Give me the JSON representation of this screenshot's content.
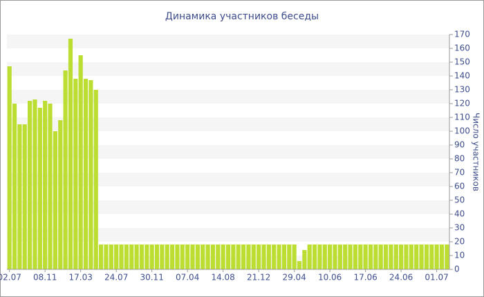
{
  "chart_data": {
    "type": "bar",
    "title": "Динамика участников беседы",
    "y_axis_label": "Число участников",
    "categories": [
      "02.07",
      null,
      null,
      null,
      null,
      null,
      null,
      "08.11",
      null,
      null,
      null,
      null,
      null,
      null,
      "17.03",
      null,
      null,
      null,
      null,
      null,
      null,
      "24.07",
      null,
      null,
      null,
      null,
      null,
      null,
      "30.11",
      null,
      null,
      null,
      null,
      null,
      null,
      "07.04",
      null,
      null,
      null,
      null,
      null,
      null,
      "14.08",
      null,
      null,
      null,
      null,
      null,
      null,
      "21.12",
      null,
      null,
      null,
      null,
      null,
      null,
      "29.04",
      null,
      null,
      null,
      null,
      null,
      null,
      "10.06",
      null,
      null,
      null,
      null,
      null,
      null,
      "17.06",
      null,
      null,
      null,
      null,
      null,
      null,
      "24.06",
      null,
      null,
      null,
      null,
      null,
      null,
      "01.07",
      null,
      null
    ],
    "values": [
      147,
      120,
      105,
      105,
      122,
      123,
      117,
      122,
      120,
      100,
      108,
      144,
      167,
      138,
      155,
      138,
      137,
      130,
      18,
      18,
      18,
      18,
      18,
      18,
      18,
      18,
      18,
      18,
      18,
      18,
      18,
      18,
      18,
      18,
      18,
      18,
      18,
      18,
      18,
      18,
      18,
      18,
      18,
      18,
      18,
      18,
      18,
      18,
      18,
      18,
      18,
      18,
      18,
      18,
      18,
      18,
      18,
      6,
      14,
      18,
      18,
      18,
      18,
      18,
      18,
      18,
      18,
      18,
      18,
      18,
      18,
      18,
      18,
      18,
      18,
      18,
      18,
      18,
      18,
      18,
      18,
      18,
      18,
      18,
      18,
      18,
      18
    ],
    "color": "#bcdd32",
    "ylim": [
      0,
      170
    ],
    "yticks": [
      0,
      10,
      20,
      30,
      40,
      50,
      60,
      70,
      80,
      90,
      100,
      110,
      120,
      130,
      140,
      150,
      160,
      170
    ],
    "grid": true
  }
}
